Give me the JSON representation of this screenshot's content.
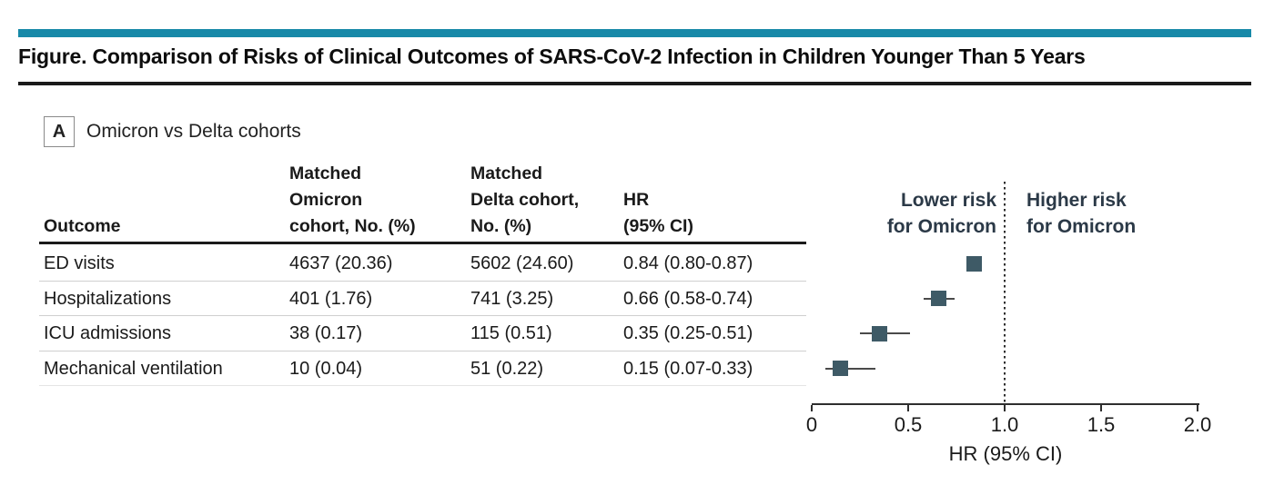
{
  "figure": {
    "title": "Figure. Comparison of Risks of Clinical Outcomes of SARS-CoV-2 Infection in Children Younger Than 5 Years"
  },
  "panel": {
    "label": "A",
    "title": "Omicron vs Delta cohorts"
  },
  "table": {
    "columns": [
      {
        "lines": [
          "Outcome"
        ]
      },
      {
        "lines": [
          "Matched",
          "Omicron",
          "cohort, No. (%)"
        ]
      },
      {
        "lines": [
          "Matched",
          "Delta cohort,",
          "No. (%)"
        ]
      },
      {
        "lines": [
          "HR",
          "(95% CI)"
        ]
      }
    ],
    "rows": [
      [
        "ED visits",
        "4637 (20.36)",
        "5602 (24.60)",
        "0.84 (0.80-0.87)"
      ],
      [
        "Hospitalizations",
        "401 (1.76)",
        "741 (3.25)",
        "0.66 (0.58-0.74)"
      ],
      [
        "ICU admissions",
        "38 (0.17)",
        "115 (0.51)",
        "0.35 (0.25-0.51)"
      ],
      [
        "Mechanical ventilation",
        "10 (0.04)",
        "51 (0.22)",
        "0.15 (0.07-0.33)"
      ]
    ]
  },
  "chart_data": {
    "type": "scatter",
    "subtype": "forest-plot",
    "panel_label": "A",
    "panel_title": "Omicron vs Delta cohorts",
    "xlabel": "HR (95% CI)",
    "xlim": [
      0,
      2.0
    ],
    "xticks": [
      0,
      0.5,
      1.0,
      1.5,
      2.0
    ],
    "xtick_labels": [
      "0",
      "0.5",
      "1.0",
      "1.5",
      "2.0"
    ],
    "reference_line_x": 1.0,
    "region_label_left": "Lower risk\nfor Omicron",
    "region_label_right": "Higher risk\nfor Omicron",
    "series": [
      {
        "outcome": "ED visits",
        "hr": 0.84,
        "ci_low": 0.8,
        "ci_high": 0.87
      },
      {
        "outcome": "Hospitalizations",
        "hr": 0.66,
        "ci_low": 0.58,
        "ci_high": 0.74
      },
      {
        "outcome": "ICU admissions",
        "hr": 0.35,
        "ci_low": 0.25,
        "ci_high": 0.51
      },
      {
        "outcome": "Mechanical ventilation",
        "hr": 0.15,
        "ci_low": 0.07,
        "ci_high": 0.33
      }
    ]
  },
  "colors": {
    "accent": "#1789a8",
    "marker": "#3e5a66",
    "risk_label": "#2b3947"
  }
}
